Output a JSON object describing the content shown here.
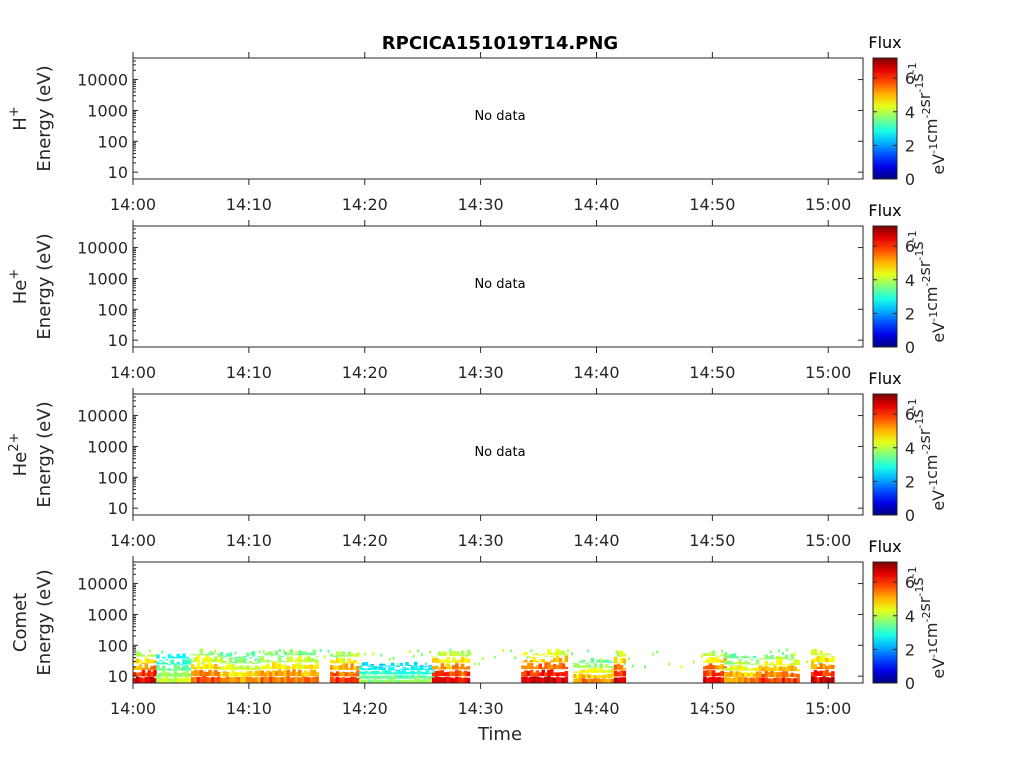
{
  "chart_data": {
    "type": "heatmap",
    "title": "RPCICA151019T14.PNG",
    "xlabel": "Time",
    "x_ticks": [
      "14:00",
      "14:10",
      "14:20",
      "14:30",
      "14:40",
      "14:50",
      "15:00"
    ],
    "xlim": [
      "14:00",
      "15:03"
    ],
    "y_scale": "log",
    "ylim": [
      6,
      50000
    ],
    "y_ticks": [
      "10",
      "100",
      "1000",
      "10000"
    ],
    "colorbar": {
      "title": "Flux",
      "unit": "eV-1cm-2sr-1s-1",
      "range": [
        0,
        7.2
      ],
      "ticks": [
        "0",
        "2",
        "4",
        "6"
      ],
      "colormap": "jet"
    },
    "panels": [
      {
        "species": "H",
        "charge": "+",
        "ylabel": "Energy (eV)",
        "message": "No data",
        "has_data": false
      },
      {
        "species": "He",
        "charge": "+",
        "ylabel": "Energy (eV)",
        "message": "No data",
        "has_data": false
      },
      {
        "species": "He",
        "charge": "2+",
        "ylabel": "Energy (eV)",
        "message": "No data",
        "has_data": false
      },
      {
        "species": "Comet",
        "charge": "",
        "ylabel": "Energy (eV)",
        "message": "",
        "has_data": true,
        "flux_bands": [
          {
            "start_min": 0.0,
            "end_min": 2.0,
            "top_energy_ev": 70,
            "peak_flux": 7.0
          },
          {
            "start_min": 2.0,
            "end_min": 5.0,
            "top_energy_ev": 60,
            "peak_flux": 4.5
          },
          {
            "start_min": 5.0,
            "end_min": 7.5,
            "top_energy_ev": 80,
            "peak_flux": 6.2
          },
          {
            "start_min": 7.5,
            "end_min": 11.0,
            "top_energy_ev": 70,
            "peak_flux": 5.6
          },
          {
            "start_min": 11.0,
            "end_min": 16.0,
            "top_energy_ev": 80,
            "peak_flux": 6.0
          },
          {
            "start_min": 17.0,
            "end_min": 19.5,
            "top_energy_ev": 70,
            "peak_flux": 6.6
          },
          {
            "start_min": 19.5,
            "end_min": 26.0,
            "top_energy_ev": 30,
            "peak_flux": 4.0
          },
          {
            "start_min": 25.8,
            "end_min": 29.0,
            "top_energy_ev": 75,
            "peak_flux": 6.8
          },
          {
            "start_min": 33.5,
            "end_min": 37.5,
            "top_energy_ev": 80,
            "peak_flux": 7.2
          },
          {
            "start_min": 38.0,
            "end_min": 41.5,
            "top_energy_ev": 40,
            "peak_flux": 5.8
          },
          {
            "start_min": 41.5,
            "end_min": 42.5,
            "top_energy_ev": 70,
            "peak_flux": 7.0
          },
          {
            "start_min": 49.2,
            "end_min": 51.0,
            "top_energy_ev": 75,
            "peak_flux": 7.0
          },
          {
            "start_min": 51.0,
            "end_min": 54.0,
            "top_energy_ev": 60,
            "peak_flux": 5.8
          },
          {
            "start_min": 54.0,
            "end_min": 57.5,
            "top_energy_ev": 55,
            "peak_flux": 6.5
          },
          {
            "start_min": 58.5,
            "end_min": 60.5,
            "top_energy_ev": 80,
            "peak_flux": 7.0
          }
        ],
        "sparse_counts_top_ev": 80,
        "data_end_min": 60.5
      }
    ]
  }
}
